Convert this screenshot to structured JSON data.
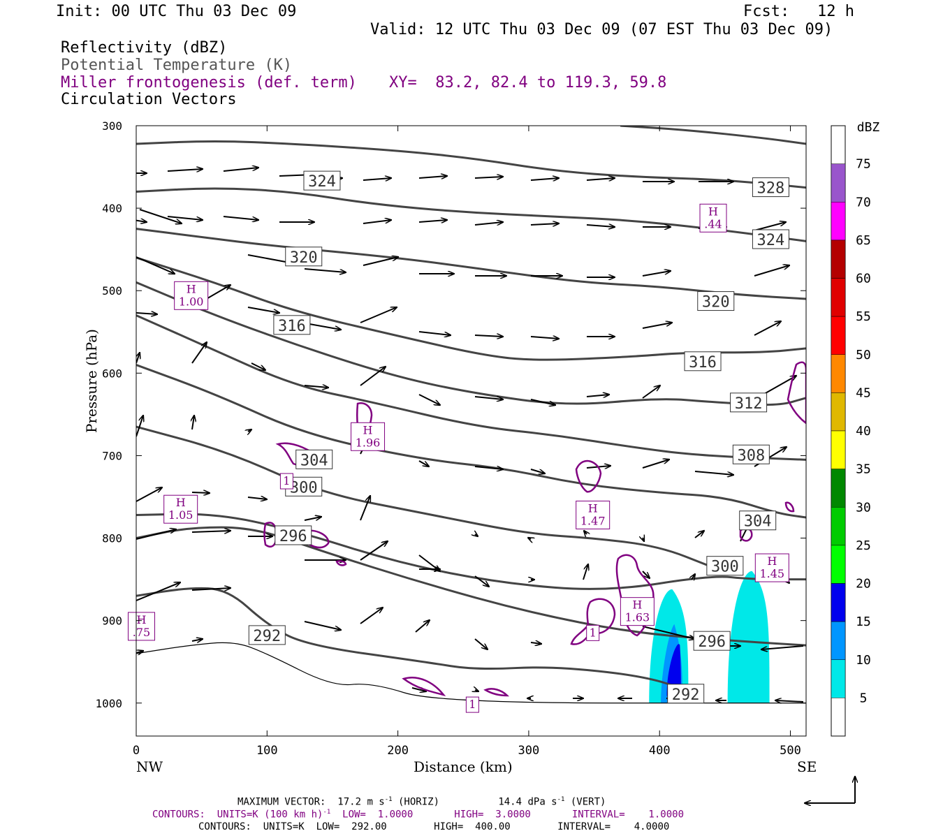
{
  "header": {
    "init": "Init: 00 UTC Thu 03 Dec 09",
    "fcst": "Fcst:   12 h",
    "valid": "Valid: 12 UTC Thu 03 Dec 09 (07 EST Thu 03 Dec 09)",
    "fields": [
      {
        "text": "Reflectivity (dBZ)",
        "color": "#000000"
      },
      {
        "text": "Potential Temperature (K)",
        "color": "#555555"
      },
      {
        "text": "Miller frontogenesis (def. term)",
        "color": "#800080"
      },
      {
        "text": "Circulation Vectors",
        "color": "#000000"
      }
    ],
    "xy": "XY=  83.2, 82.4 to 119.3, 59.8"
  },
  "chart_data": {
    "type": "cross-section",
    "ylabel": "Pressure (hPa)",
    "xlabel": "Distance (km)",
    "x_left_label": "NW",
    "x_right_label": "SE",
    "xlim": [
      0,
      512
    ],
    "ylim": [
      1040,
      300
    ],
    "xticks": [
      0,
      100,
      200,
      300,
      400,
      500
    ],
    "yticks": [
      300,
      400,
      500,
      600,
      700,
      800,
      900,
      1000
    ],
    "theta_contours": [
      {
        "label": "292",
        "label_at": [
          100,
          918
        ],
        "points": [
          [
            0,
            940
          ],
          [
            40,
            930
          ],
          [
            75,
            925
          ],
          [
            100,
            940
          ],
          [
            150,
            980
          ],
          [
            180,
            975
          ],
          [
            230,
            1000
          ],
          [
            512,
            1000
          ]
        ]
      },
      {
        "label": "292",
        "label_at": [
          420,
          989
        ],
        "points": [
          [
            0,
            870
          ],
          [
            40,
            860
          ],
          [
            70,
            862
          ],
          [
            100,
            905
          ],
          [
            130,
            930
          ],
          [
            220,
            950
          ],
          [
            260,
            960
          ],
          [
            320,
            955
          ],
          [
            400,
            970
          ],
          [
            430,
            995
          ]
        ]
      },
      {
        "label": "296",
        "label_at": [
          440,
          925
        ],
        "points": [
          [
            0,
            800
          ],
          [
            40,
            787
          ],
          [
            90,
            787
          ],
          [
            140,
            815
          ],
          [
            220,
            855
          ],
          [
            300,
            890
          ],
          [
            380,
            915
          ],
          [
            460,
            925
          ],
          [
            512,
            930
          ]
        ]
      },
      {
        "label": "296",
        "label_at": [
          120,
          797
        ],
        "points": []
      },
      {
        "label": "300",
        "label_at": [
          450,
          834
        ],
        "points": [
          [
            0,
            772
          ],
          [
            60,
            770
          ],
          [
            120,
            790
          ],
          [
            200,
            830
          ],
          [
            280,
            855
          ],
          [
            360,
            865
          ],
          [
            440,
            845
          ],
          [
            470,
            850
          ],
          [
            512,
            850
          ]
        ]
      },
      {
        "label": "300",
        "label_at": [
          128,
          738
        ],
        "points": [
          [
            0,
            665
          ],
          [
            70,
            695
          ],
          [
            140,
            745
          ],
          [
            220,
            770
          ],
          [
            300,
            795
          ],
          [
            350,
            800
          ],
          [
            400,
            810
          ],
          [
            440,
            835
          ]
        ]
      },
      {
        "label": "304",
        "label_at": [
          475,
          779
        ],
        "points": [
          [
            0,
            590
          ],
          [
            60,
            625
          ],
          [
            130,
            675
          ],
          [
            220,
            705
          ],
          [
            280,
            715
          ],
          [
            340,
            735
          ],
          [
            400,
            745
          ],
          [
            450,
            750
          ],
          [
            490,
            770
          ],
          [
            512,
            775
          ]
        ]
      },
      {
        "label": "304",
        "label_at": [
          136,
          705
        ],
        "points": []
      },
      {
        "label": "308",
        "label_at": [
          470,
          699
        ],
        "points": [
          [
            0,
            530
          ],
          [
            50,
            565
          ],
          [
            120,
            615
          ],
          [
            180,
            635
          ],
          [
            260,
            665
          ],
          [
            320,
            675
          ],
          [
            380,
            690
          ],
          [
            430,
            700
          ],
          [
            512,
            705
          ]
        ]
      },
      {
        "label": "312",
        "label_at": [
          468,
          636
        ],
        "points": [
          [
            0,
            490
          ],
          [
            60,
            530
          ],
          [
            130,
            570
          ],
          [
            200,
            605
          ],
          [
            260,
            625
          ],
          [
            330,
            640
          ],
          [
            400,
            630
          ],
          [
            440,
            635
          ],
          [
            490,
            640
          ],
          [
            512,
            630
          ]
        ]
      },
      {
        "label": "316",
        "label_at": [
          433,
          586
        ],
        "points": [
          [
            0,
            460
          ],
          [
            60,
            490
          ],
          [
            120,
            525
          ],
          [
            200,
            555
          ],
          [
            270,
            580
          ],
          [
            310,
            585
          ],
          [
            380,
            580
          ],
          [
            420,
            575
          ],
          [
            480,
            575
          ],
          [
            512,
            570
          ]
        ]
      },
      {
        "label": "316",
        "label_at": [
          119,
          542
        ],
        "points": []
      },
      {
        "label": "320",
        "label_at": [
          443,
          513
        ],
        "points": [
          [
            0,
            425
          ],
          [
            50,
            435
          ],
          [
            100,
            445
          ],
          [
            200,
            460
          ],
          [
            270,
            475
          ],
          [
            340,
            490
          ],
          [
            400,
            495
          ],
          [
            460,
            505
          ],
          [
            512,
            510
          ]
        ]
      },
      {
        "label": "320",
        "label_at": [
          128,
          459
        ],
        "points": []
      },
      {
        "label": "324",
        "label_at": [
          485,
          438
        ],
        "points": [
          [
            0,
            380
          ],
          [
            60,
            375
          ],
          [
            120,
            380
          ],
          [
            180,
            395
          ],
          [
            250,
            405
          ],
          [
            320,
            410
          ],
          [
            380,
            415
          ],
          [
            440,
            425
          ],
          [
            512,
            440
          ]
        ]
      },
      {
        "label": "324",
        "label_at": [
          142,
          367
        ],
        "points": []
      },
      {
        "label": "328",
        "label_at": [
          485,
          375
        ],
        "points": [
          [
            0,
            322
          ],
          [
            60,
            318
          ],
          [
            120,
            322
          ],
          [
            200,
            330
          ],
          [
            260,
            340
          ],
          [
            320,
            355
          ],
          [
            380,
            362
          ],
          [
            440,
            365
          ],
          [
            480,
            370
          ],
          [
            512,
            375
          ]
        ]
      },
      {
        "label": "",
        "label_at": null,
        "points": [
          [
            370,
            300
          ],
          [
            420,
            305
          ],
          [
            480,
            315
          ],
          [
            512,
            322
          ]
        ]
      }
    ],
    "frontogenesis_maxima": [
      {
        "label": "H\n.44",
        "x": 441,
        "y": 412
      },
      {
        "label": "H\n1.00",
        "x": 42,
        "y": 506
      },
      {
        "label": "H\n1.96",
        "x": 177,
        "y": 677
      },
      {
        "label": "1",
        "x": 115,
        "y": 731
      },
      {
        "label": "H\n1.05",
        "x": 34,
        "y": 765
      },
      {
        "label": "H\n1.47",
        "x": 349,
        "y": 772
      },
      {
        "label": "H\n1.45",
        "x": 486,
        "y": 836
      },
      {
        "label": "H\n.75",
        "x": 4,
        "y": 907
      },
      {
        "label": "H\n1.63",
        "x": 383,
        "y": 889
      },
      {
        "label": "1",
        "x": 349,
        "y": 915
      },
      {
        "label": "1",
        "x": 257,
        "y": 1002
      }
    ],
    "reflectivity_dbz": {
      "levels": [
        5,
        10,
        15,
        20,
        25,
        30,
        35,
        40,
        45,
        50,
        55,
        60,
        65,
        70,
        75
      ],
      "colors": [
        "#00e8e8",
        "#0096ff",
        "#0000ee",
        "#00ff00",
        "#00cc00",
        "#008800",
        "#ffff00",
        "#e0b800",
        "#ff8800",
        "#ff0000",
        "#e00000",
        "#b40000",
        "#ff00ff",
        "#9955cc"
      ],
      "cells": [
        {
          "x_range": [
            392,
            422
          ],
          "top_hPa": 862,
          "max_dbz": 15
        },
        {
          "x_range": [
            452,
            484
          ],
          "top_hPa": 840,
          "max_dbz": 5
        }
      ]
    },
    "colorbar": {
      "unit": "dBZ",
      "labels": [
        "75",
        "70",
        "65",
        "60",
        "55",
        "50",
        "45",
        "40",
        "35",
        "30",
        "25",
        "20",
        "15",
        "10",
        "5"
      ]
    }
  },
  "footer": {
    "max_vector_label": "MAXIMUM VECTOR:",
    "max_vector_horiz": "17.2 m s",
    "max_vector_horiz_suffix": " (HORIZ)",
    "max_vector_vert": "14.4 dPa s",
    "max_vector_vert_suffix": " (VERT)",
    "exp": "-1",
    "contours_fronto_a": "CONTOURS:  UNITS=K (100 km h)",
    "contours_fronto_b": "  LOW=  1.0000       HIGH=  3.0000       INTERVAL=    1.0000",
    "contours_theta": "CONTOURS:  UNITS=K  LOW=  292.00        HIGH=  400.00        INTERVAL=    4.0000"
  }
}
